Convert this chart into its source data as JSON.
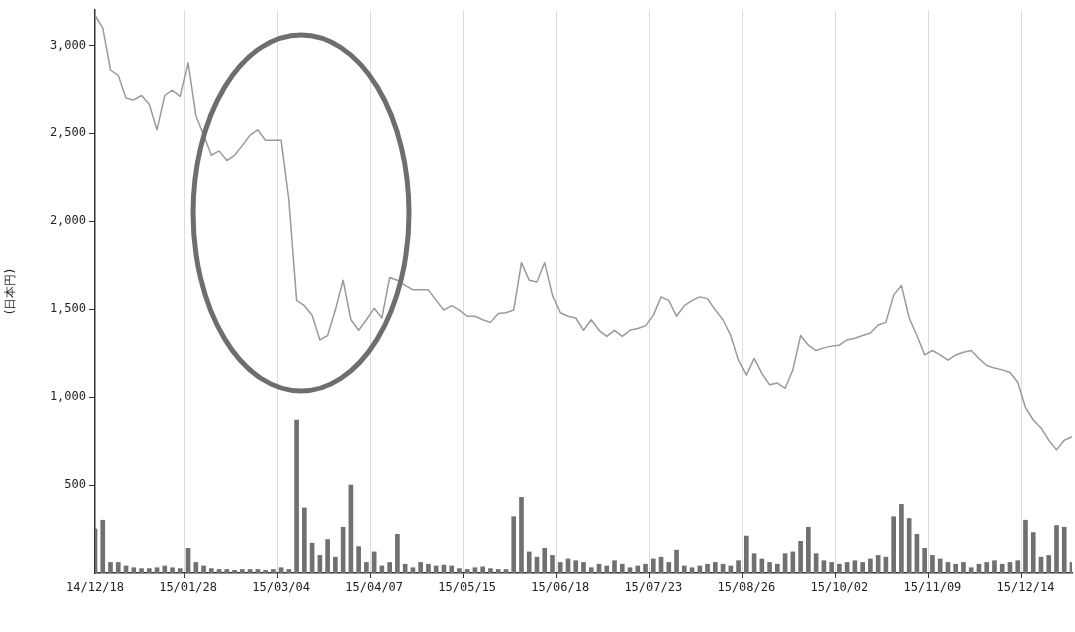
{
  "chart_data": {
    "type": "line",
    "ylabel": "(日本円)",
    "categories": [
      "14/12/18",
      null,
      null,
      null,
      null,
      null,
      null,
      null,
      null,
      null,
      null,
      null,
      "15/01/28",
      null,
      null,
      null,
      null,
      null,
      null,
      null,
      null,
      null,
      null,
      null,
      "15/03/04",
      null,
      null,
      null,
      null,
      null,
      null,
      null,
      null,
      null,
      null,
      null,
      "15/04/07",
      null,
      null,
      null,
      null,
      null,
      null,
      null,
      null,
      null,
      null,
      null,
      "15/05/15",
      null,
      null,
      null,
      null,
      null,
      null,
      null,
      null,
      null,
      null,
      null,
      "15/06/18",
      null,
      null,
      null,
      null,
      null,
      null,
      null,
      null,
      null,
      null,
      null,
      "15/07/23",
      null,
      null,
      null,
      null,
      null,
      null,
      null,
      null,
      null,
      null,
      null,
      "15/08/26",
      null,
      null,
      null,
      null,
      null,
      null,
      null,
      null,
      null,
      null,
      null,
      "15/10/02",
      null,
      null,
      null,
      null,
      null,
      null,
      null,
      null,
      null,
      null,
      null,
      "15/11/09",
      null,
      null,
      null,
      null,
      null,
      null,
      null,
      null,
      null,
      null,
      null,
      "15/12/14",
      null,
      null,
      null,
      null,
      null,
      null
    ],
    "series": [
      {
        "type": "bar",
        "color": "#707070",
        "values": [
          250,
          300,
          60,
          60,
          40,
          30,
          25,
          25,
          30,
          40,
          30,
          25,
          140,
          60,
          40,
          25,
          20,
          20,
          15,
          20,
          20,
          20,
          15,
          20,
          30,
          20,
          870,
          370,
          170,
          100,
          190,
          90,
          260,
          500,
          150,
          60,
          120,
          40,
          60,
          220,
          50,
          30,
          60,
          50,
          40,
          45,
          40,
          25,
          20,
          30,
          35,
          25,
          20,
          20,
          320,
          430,
          120,
          90,
          140,
          100,
          60,
          80,
          70,
          60,
          30,
          50,
          40,
          70,
          50,
          30,
          40,
          50,
          80,
          90,
          60,
          130,
          40,
          30,
          40,
          50,
          60,
          50,
          40,
          70,
          210,
          110,
          80,
          60,
          50,
          110,
          120,
          180,
          260,
          110,
          70,
          60,
          50,
          60,
          70,
          60,
          80,
          100,
          90,
          320,
          390,
          310,
          220,
          140,
          100,
          80,
          60,
          50,
          60,
          30,
          50,
          60,
          70,
          50,
          60,
          70,
          300,
          230,
          90,
          100,
          270,
          260,
          60
        ]
      },
      {
        "color": "#9a9a9a",
        "values": [
          3170,
          3100,
          2860,
          2830,
          2700,
          2690,
          2715,
          2665,
          2520,
          2715,
          2745,
          2710,
          2900,
          2600,
          2490,
          2375,
          2400,
          2345,
          2375,
          2430,
          2490,
          2520,
          2460,
          2460,
          2460,
          2120,
          1550,
          1520,
          1465,
          1325,
          1350,
          1495,
          1665,
          1440,
          1380,
          1440,
          1505,
          1450,
          1680,
          1665,
          1635,
          1610,
          1610,
          1610,
          1550,
          1495,
          1520,
          1495,
          1460,
          1460,
          1440,
          1425,
          1475,
          1480,
          1495,
          1765,
          1665,
          1655,
          1765,
          1580,
          1480,
          1460,
          1450,
          1380,
          1440,
          1380,
          1345,
          1380,
          1345,
          1380,
          1390,
          1405,
          1465,
          1570,
          1550,
          1460,
          1520,
          1550,
          1570,
          1560,
          1495,
          1440,
          1350,
          1210,
          1125,
          1220,
          1135,
          1070,
          1080,
          1050,
          1155,
          1350,
          1295,
          1265,
          1280,
          1290,
          1295,
          1325,
          1335,
          1350,
          1365,
          1410,
          1425,
          1580,
          1635,
          1450,
          1350,
          1240,
          1265,
          1240,
          1210,
          1240,
          1255,
          1265,
          1220,
          1180,
          1165,
          1155,
          1140,
          1085,
          940,
          870,
          825,
          755,
          700,
          755,
          775
        ]
      }
    ],
    "ylim": [
      0,
      3200
    ],
    "yticks": [
      {
        "value": 500,
        "label": "500"
      },
      {
        "value": 1000,
        "label": "1,000"
      },
      {
        "value": 1500,
        "label": "1,500"
      },
      {
        "value": 2000,
        "label": "2,000"
      },
      {
        "value": 2500,
        "label": "2,500"
      },
      {
        "value": 3000,
        "label": "3,000"
      }
    ],
    "grid": "x"
  }
}
